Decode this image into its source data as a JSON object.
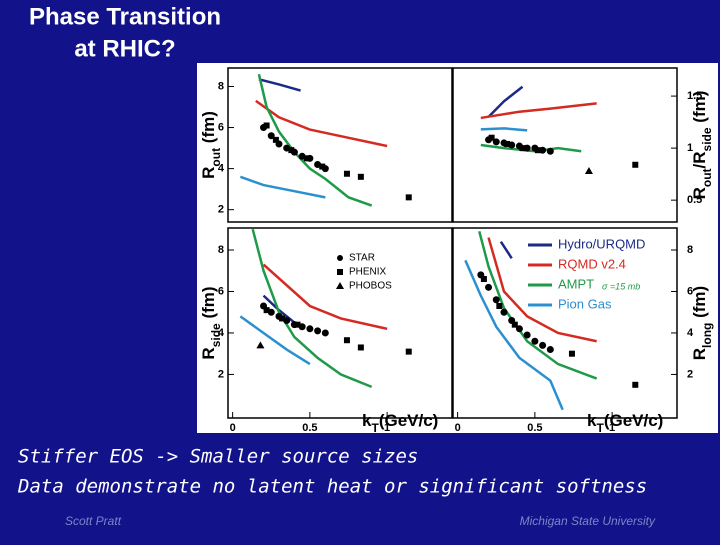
{
  "title": [
    "Phase Transition",
    "at RHIC?"
  ],
  "chart_data": [
    {
      "type": "line",
      "y_label": [
        {
          "text": "R"
        },
        {
          "text": "out",
          "sub": true
        },
        {
          "text": " (fm)"
        }
      ],
      "xlim": [
        -0.03,
        1.42
      ],
      "ylim": [
        1.4,
        8.9
      ],
      "yticks": [
        2,
        4,
        6,
        8
      ],
      "yaxis_side": "left",
      "series": [
        {
          "color": "#1c2a86",
          "x": [
            0.17,
            0.3,
            0.44
          ],
          "values": [
            8.35,
            8.1,
            7.8
          ]
        },
        {
          "color": "#d42a22",
          "x": [
            0.15,
            0.3,
            0.5,
            0.75,
            1.0
          ],
          "values": [
            7.3,
            6.5,
            5.9,
            5.5,
            5.1
          ]
        },
        {
          "color": "#1e9a48",
          "x": [
            0.17,
            0.22,
            0.3,
            0.4,
            0.5,
            0.6,
            0.75,
            0.9
          ],
          "values": [
            8.6,
            7.0,
            5.8,
            4.8,
            4.0,
            3.5,
            2.6,
            2.2
          ]
        },
        {
          "color": "#2a90d0",
          "x": [
            0.05,
            0.2,
            0.4,
            0.6
          ],
          "values": [
            3.6,
            3.2,
            2.9,
            2.6
          ]
        },
        {
          "marker": "circle",
          "x": [
            0.2,
            0.25,
            0.3,
            0.35,
            0.4,
            0.45,
            0.5,
            0.55,
            0.6
          ],
          "values": [
            6.0,
            5.6,
            5.2,
            5.0,
            4.8,
            4.6,
            4.5,
            4.2,
            4.0
          ]
        },
        {
          "marker": "square",
          "x": [
            0.22,
            0.28,
            0.38,
            0.48,
            0.58,
            0.74,
            0.83,
            1.14
          ],
          "values": [
            6.1,
            5.4,
            4.9,
            4.5,
            4.1,
            3.75,
            3.6,
            2.6
          ]
        }
      ]
    },
    {
      "type": "line",
      "y_label": [
        {
          "text": "R"
        },
        {
          "text": "out",
          "sub": true
        },
        {
          "text": "/R"
        },
        {
          "text": "side",
          "sub": true
        },
        {
          "text": " (fm)"
        }
      ],
      "xlim": [
        -0.03,
        1.42
      ],
      "ylim": [
        0.29,
        1.77
      ],
      "yticks": [
        0.5,
        1,
        1.5
      ],
      "yaxis_side": "right",
      "series": [
        {
          "color": "#1c2a86",
          "x": [
            0.2,
            0.3,
            0.42
          ],
          "values": [
            1.3,
            1.45,
            1.59
          ]
        },
        {
          "color": "#d42a22",
          "x": [
            0.15,
            0.4,
            0.6,
            0.9
          ],
          "values": [
            1.29,
            1.35,
            1.38,
            1.43
          ]
        },
        {
          "color": "#1e9a48",
          "x": [
            0.15,
            0.3,
            0.5,
            0.65,
            0.8
          ],
          "values": [
            1.03,
            1.0,
            0.97,
            1.0,
            0.97
          ]
        },
        {
          "color": "#2a90d0",
          "x": [
            0.15,
            0.3,
            0.45
          ],
          "values": [
            1.18,
            1.19,
            1.17
          ]
        },
        {
          "marker": "circle",
          "x": [
            0.2,
            0.25,
            0.3,
            0.35,
            0.4,
            0.45,
            0.5,
            0.55,
            0.6
          ],
          "values": [
            1.08,
            1.06,
            1.05,
            1.03,
            1.02,
            1.0,
            1.0,
            0.98,
            0.97
          ]
        },
        {
          "marker": "square",
          "x": [
            0.22,
            0.32,
            0.42,
            0.52,
            1.15
          ],
          "values": [
            1.1,
            1.04,
            1.0,
            0.98,
            0.84
          ]
        },
        {
          "marker": "triangle",
          "x": [
            0.85
          ],
          "values": [
            0.78
          ]
        }
      ]
    },
    {
      "type": "line",
      "y_label": [
        {
          "text": "R"
        },
        {
          "text": "side",
          "sub": true
        },
        {
          "text": " (fm)"
        }
      ],
      "x_label": [
        {
          "text": "k"
        },
        {
          "text": "T",
          "sub": true
        },
        {
          "text": "(GeV/c)"
        }
      ],
      "xlim": [
        -0.03,
        1.42
      ],
      "ylim": [
        -0.1,
        9.06
      ],
      "yticks": [
        2,
        4,
        6,
        8
      ],
      "xticks": [
        0,
        0.5,
        1
      ],
      "yaxis_side": "left",
      "series": [
        {
          "color": "#1c2a86",
          "x": [
            0.2,
            0.3,
            0.4
          ],
          "values": [
            5.8,
            5.1,
            4.5
          ]
        },
        {
          "color": "#d42a22",
          "x": [
            0.2,
            0.5,
            0.7,
            1.0
          ],
          "values": [
            7.3,
            5.3,
            4.7,
            4.2
          ]
        },
        {
          "color": "#1e9a48",
          "x": [
            0.13,
            0.2,
            0.3,
            0.4,
            0.55,
            0.7,
            0.9
          ],
          "values": [
            9.0,
            7.0,
            5.0,
            3.8,
            2.8,
            2.0,
            1.4
          ]
        },
        {
          "color": "#2a90d0",
          "x": [
            0.05,
            0.2,
            0.35,
            0.5
          ],
          "values": [
            4.8,
            4.0,
            3.2,
            2.5
          ]
        },
        {
          "name": "STAR",
          "marker": "circle",
          "x": [
            0.2,
            0.25,
            0.3,
            0.35,
            0.4,
            0.45,
            0.5,
            0.55,
            0.6
          ],
          "values": [
            5.3,
            5.0,
            4.8,
            4.6,
            4.4,
            4.3,
            4.2,
            4.1,
            4.0
          ]
        },
        {
          "name": "PHENIX",
          "marker": "square",
          "x": [
            0.22,
            0.32,
            0.42,
            0.74,
            0.83,
            1.14
          ],
          "values": [
            5.1,
            4.7,
            4.4,
            3.65,
            3.3,
            3.1
          ]
        },
        {
          "name": "PHOBOS",
          "marker": "triangle",
          "x": [
            0.18
          ],
          "values": [
            3.4
          ]
        }
      ]
    },
    {
      "type": "line",
      "y_label": [
        {
          "text": "R"
        },
        {
          "text": "long",
          "sub": true
        },
        {
          "text": " (fm)"
        }
      ],
      "x_label": [
        {
          "text": "k"
        },
        {
          "text": "T",
          "sub": true
        },
        {
          "text": "(GeV/c)"
        }
      ],
      "xlim": [
        -0.03,
        1.42
      ],
      "ylim": [
        -0.1,
        9.06
      ],
      "yticks": [
        2,
        4,
        6,
        8
      ],
      "xticks": [
        0,
        0.5,
        1
      ],
      "yaxis_side": "right",
      "series": [
        {
          "name": "Hydro/URQMD",
          "color": "#1c2a86",
          "x": [
            0.28,
            0.35
          ],
          "values": [
            8.4,
            7.6
          ]
        },
        {
          "name": "RQMD v2.4",
          "color": "#d42a22",
          "x": [
            0.2,
            0.3,
            0.45,
            0.65,
            0.9
          ],
          "values": [
            8.6,
            6.0,
            4.8,
            4.0,
            3.6
          ]
        },
        {
          "name": "AMPT",
          "note": "σ =15 mb",
          "color": "#1e9a48",
          "x": [
            0.14,
            0.2,
            0.3,
            0.45,
            0.65,
            0.9
          ],
          "values": [
            8.9,
            7.2,
            5.2,
            3.6,
            2.5,
            1.8
          ]
        },
        {
          "name": "Pion Gas",
          "color": "#2a90d0",
          "x": [
            0.05,
            0.15,
            0.25,
            0.4,
            0.6,
            0.68
          ],
          "values": [
            7.5,
            5.8,
            4.3,
            2.8,
            1.7,
            0.3
          ]
        },
        {
          "marker": "circle",
          "x": [
            0.15,
            0.2,
            0.25,
            0.3,
            0.35,
            0.4,
            0.45,
            0.5,
            0.55,
            0.6
          ],
          "values": [
            6.8,
            6.2,
            5.6,
            5.0,
            4.6,
            4.2,
            3.9,
            3.6,
            3.4,
            3.2
          ]
        },
        {
          "marker": "square",
          "x": [
            0.17,
            0.27,
            0.37,
            0.74,
            1.15
          ],
          "values": [
            6.6,
            5.3,
            4.4,
            3.0,
            1.5
          ]
        }
      ]
    }
  ],
  "text": [
    "Stiffer EOS -> Smaller source sizes",
    "Data demonstrate no latent heat or significant softness"
  ],
  "footer": {
    "left": "Scott Pratt",
    "right": "Michigan State University"
  }
}
